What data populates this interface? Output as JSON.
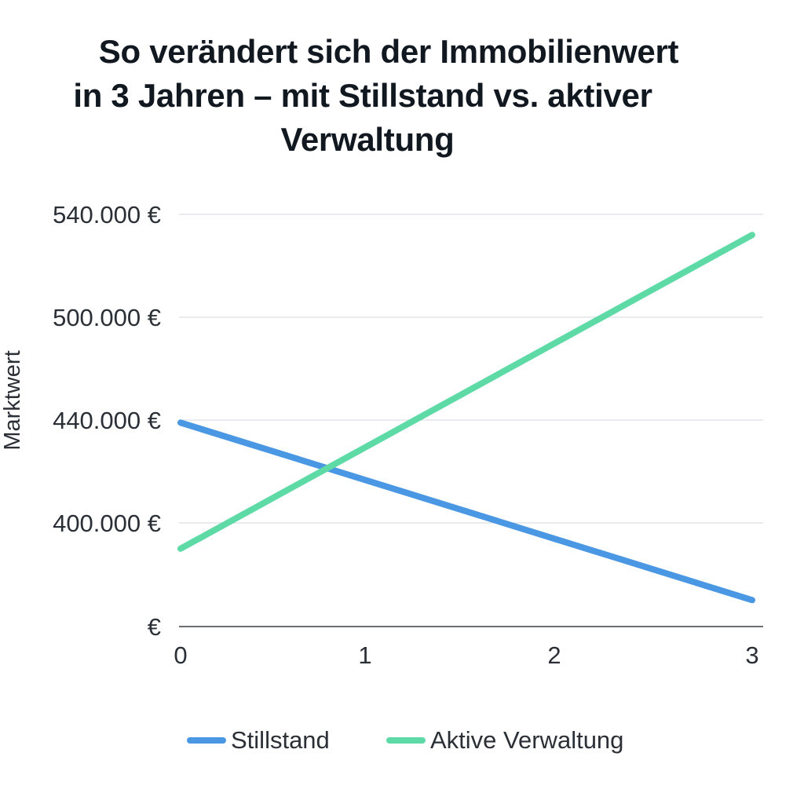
{
  "chart_data": {
    "type": "line",
    "title_lines": [
      "So verändert sich der Immobilienwert",
      "in 3 Jahren – mit Stillstand vs. aktiver",
      "Verwaltung"
    ],
    "xlabel": "",
    "ylabel": "Marktwert",
    "x": [
      0,
      3
    ],
    "x_tick_labels": [
      "0",
      "1",
      "2",
      "3"
    ],
    "y_tick_labels": [
      "540.000 €",
      "500.000 €",
      "440.000 €",
      "400.000 €",
      "€"
    ],
    "grid": true,
    "legend_position": "bottom",
    "series": [
      {
        "name": "Stillstand",
        "color": "#4a97e3",
        "values": [
          439000,
          370000
        ]
      },
      {
        "name": "Aktive Verwaltung",
        "color": "#5edaa6",
        "values": [
          390000,
          532000
        ]
      }
    ]
  }
}
